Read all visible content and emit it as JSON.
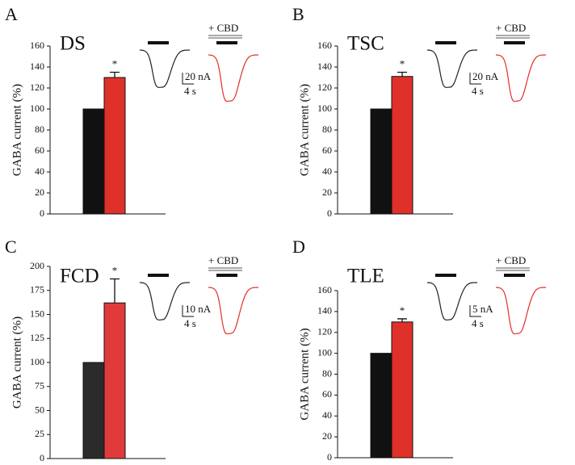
{
  "chart_data": [
    {
      "type": "bar",
      "panel": "A",
      "title": "DS",
      "ylabel": "GABA current (%)",
      "categories": [
        null,
        null
      ],
      "values": [
        100,
        130
      ],
      "errors": [
        null,
        5
      ],
      "colors": [
        "#111111",
        "#e0302a"
      ],
      "annotation": "*",
      "ylim": [
        0,
        160
      ],
      "yticks": [
        0,
        20,
        40,
        60,
        80,
        100,
        120,
        140,
        160
      ],
      "drug_label": "+ CBD",
      "scale_current": "20 nA",
      "scale_time": "4 s"
    },
    {
      "type": "bar",
      "panel": "B",
      "title": "TSC",
      "ylabel": "GABA current (%)",
      "categories": [
        null,
        null
      ],
      "values": [
        100,
        131
      ],
      "errors": [
        null,
        4
      ],
      "colors": [
        "#111111",
        "#e0302a"
      ],
      "annotation": "*",
      "ylim": [
        0,
        160
      ],
      "yticks": [
        0,
        20,
        40,
        60,
        80,
        100,
        120,
        140,
        160
      ],
      "drug_label": "+ CBD",
      "scale_current": "20 nA",
      "scale_time": "4 s"
    },
    {
      "type": "bar",
      "panel": "C",
      "title": "FCD",
      "ylabel": "GABA current (%)",
      "categories": [
        null,
        null
      ],
      "values": [
        100,
        162
      ],
      "errors": [
        null,
        25
      ],
      "colors": [
        "#2b2b2b",
        "#e03a3a"
      ],
      "annotation": "*",
      "ylim": [
        0,
        200
      ],
      "yticks": [
        0,
        25,
        50,
        75,
        100,
        125,
        150,
        175,
        200
      ],
      "drug_label": "+ CBD",
      "scale_current": "10 nA",
      "scale_time": "4 s"
    },
    {
      "type": "bar",
      "panel": "D",
      "title": "TLE",
      "ylabel": "GABA current (%)",
      "categories": [
        null,
        null
      ],
      "values": [
        100,
        130
      ],
      "errors": [
        null,
        3
      ],
      "colors": [
        "#111111",
        "#e0302a"
      ],
      "annotation": "*",
      "ylim": [
        0,
        160
      ],
      "yticks": [
        0,
        20,
        40,
        60,
        80,
        100,
        120,
        140,
        160
      ],
      "drug_label": "+ CBD",
      "scale_current": "5 nA",
      "scale_time": "4 s"
    }
  ]
}
